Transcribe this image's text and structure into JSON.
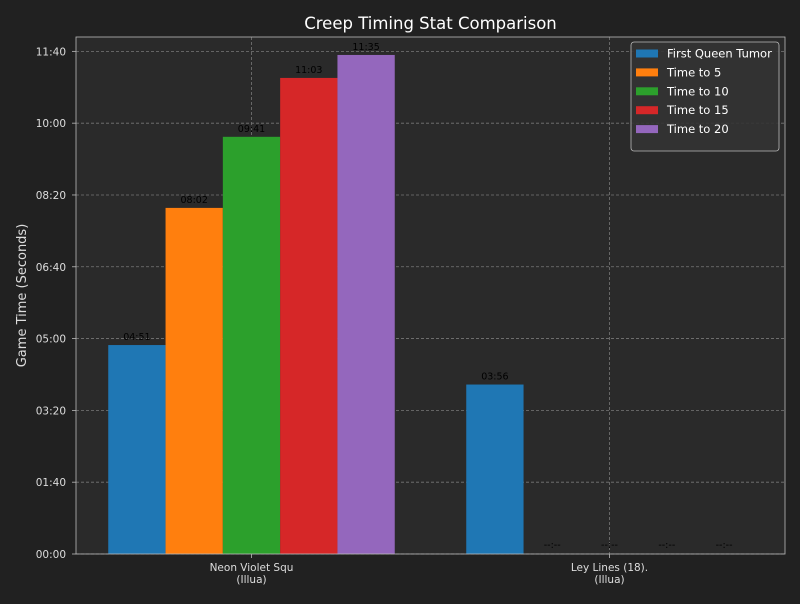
{
  "chart_data": {
    "type": "bar",
    "title": "Creep Timing Stat Comparison",
    "xlabel": "",
    "ylabel": "Game Time (Seconds)",
    "ylim": [
      0,
      720
    ],
    "yticks": [
      {
        "value": 0,
        "label": "00:00"
      },
      {
        "value": 100,
        "label": "01:40"
      },
      {
        "value": 200,
        "label": "03:20"
      },
      {
        "value": 300,
        "label": "05:00"
      },
      {
        "value": 400,
        "label": "06:40"
      },
      {
        "value": 500,
        "label": "08:20"
      },
      {
        "value": 600,
        "label": "10:00"
      },
      {
        "value": 700,
        "label": "11:40"
      }
    ],
    "categories": [
      [
        "Neon Violet Squ",
        "(Illua)"
      ],
      [
        "Ley Lines (18).",
        "(Illua)"
      ]
    ],
    "series": [
      {
        "name": "First Queen Tumor",
        "color": "#1f77b4",
        "values": [
          291,
          236
        ],
        "labels": [
          "04:51",
          "03:56"
        ]
      },
      {
        "name": "Time to 5",
        "color": "#ff7f0e",
        "values": [
          482,
          null
        ],
        "labels": [
          "08:02",
          "--:--"
        ]
      },
      {
        "name": "Time to 10",
        "color": "#2ca02c",
        "values": [
          581,
          null
        ],
        "labels": [
          "09:41",
          "--:--"
        ]
      },
      {
        "name": "Time to 15",
        "color": "#d62728",
        "values": [
          663,
          null
        ],
        "labels": [
          "11:03",
          "--:--"
        ]
      },
      {
        "name": "Time to 20",
        "color": "#9467bd",
        "values": [
          695,
          null
        ],
        "labels": [
          "11:35",
          "--:--"
        ]
      }
    ],
    "grid": true,
    "legend_position": "top-right",
    "colors": {
      "background": "#212121",
      "plot_background": "#2a2a2a",
      "grid": "#777777",
      "text": "#ffffff",
      "tick_text": "#dddddd",
      "data_label": "#000000"
    }
  }
}
